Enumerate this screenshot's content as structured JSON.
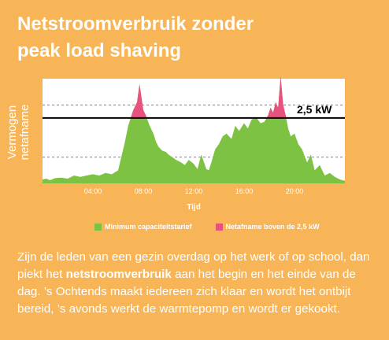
{
  "title_line1": "Netstroomverbruik zonder",
  "title_line2": "peak load shaving",
  "ylabel_line1": "Vermogen",
  "ylabel_line2": "netafname",
  "paragraph_part1": "Zijn de leden van een gezin overdag op het werk of op school, dan piekt het ",
  "paragraph_bold": "netstroomverbruik",
  "paragraph_part2": " aan het begin en het einde van de dag. ’s Ochtends maakt iedereen zich klaar en wordt het ontbijt bereid, ’s avonds werkt de warmtepomp en wordt er gekookt.",
  "colors": {
    "background": "#F8B557",
    "area_green": "#7DC242",
    "area_pink": "#E8527E",
    "plot_bg": "#FFFFFF",
    "threshold_line": "#000000",
    "grid": "#555555"
  },
  "chart_data": {
    "type": "area",
    "xlabel": "Tijd",
    "x_unit": "hour",
    "xlim": [
      0,
      24
    ],
    "xticks": [
      "04:00",
      "08:00",
      "12:00",
      "16:00",
      "20:00"
    ],
    "xtick_values": [
      4,
      8,
      12,
      16,
      20
    ],
    "ylim": [
      0,
      4
    ],
    "yticks_shown": false,
    "threshold": {
      "value": 2.5,
      "label": "2,5 kW"
    },
    "legend": [
      {
        "name": "Minimum capaciteitstarief",
        "color": "#7DC242"
      },
      {
        "name": "Netafname boven de 2,5 kW",
        "color": "#E8527E"
      }
    ],
    "legend_position": "bottom",
    "grid": "dashed horizontal",
    "x": [
      0,
      0.3,
      0.6,
      1,
      1.5,
      2,
      2.5,
      3,
      3.5,
      4,
      4.5,
      5,
      5.5,
      6,
      6.2,
      6.5,
      6.8,
      7,
      7.2,
      7.5,
      7.7,
      8,
      8.2,
      8.5,
      8.8,
      9,
      9.2,
      9.5,
      9.8,
      10,
      10.3,
      10.6,
      11,
      11.3,
      11.6,
      12,
      12.3,
      12.6,
      13,
      13.2,
      13.4,
      13.7,
      14,
      14.3,
      14.6,
      15,
      15.3,
      15.6,
      16,
      16.3,
      16.6,
      17,
      17.3,
      17.6,
      17.9,
      18.1,
      18.3,
      18.5,
      18.7,
      18.9,
      19.1,
      19.3,
      19.5,
      19.7,
      20,
      20.3,
      20.6,
      21,
      21.3,
      21.6,
      22,
      22.4,
      22.8,
      23.2,
      23.6,
      24
    ],
    "y": [
      0.15,
      0.18,
      0.12,
      0.2,
      0.22,
      0.18,
      0.3,
      0.25,
      0.3,
      0.35,
      0.3,
      0.4,
      0.35,
      0.5,
      0.9,
      1.5,
      2.2,
      2.5,
      2.8,
      3.1,
      3.8,
      2.8,
      2.6,
      2.2,
      1.9,
      1.6,
      1.4,
      1.25,
      1.2,
      1.1,
      1.0,
      0.9,
      0.8,
      0.7,
      0.9,
      0.75,
      0.55,
      1.1,
      0.55,
      0.5,
      0.8,
      1.3,
      1.5,
      1.8,
      1.9,
      1.7,
      2.2,
      2.0,
      2.3,
      2.1,
      2.45,
      2.5,
      2.3,
      2.35,
      2.6,
      2.9,
      2.7,
      3.1,
      2.9,
      4.1,
      3.0,
      2.6,
      2.1,
      1.8,
      1.9,
      1.5,
      1.3,
      0.8,
      1.1,
      0.5,
      0.7,
      0.3,
      0.4,
      0.25,
      0.15,
      0.1
    ]
  }
}
